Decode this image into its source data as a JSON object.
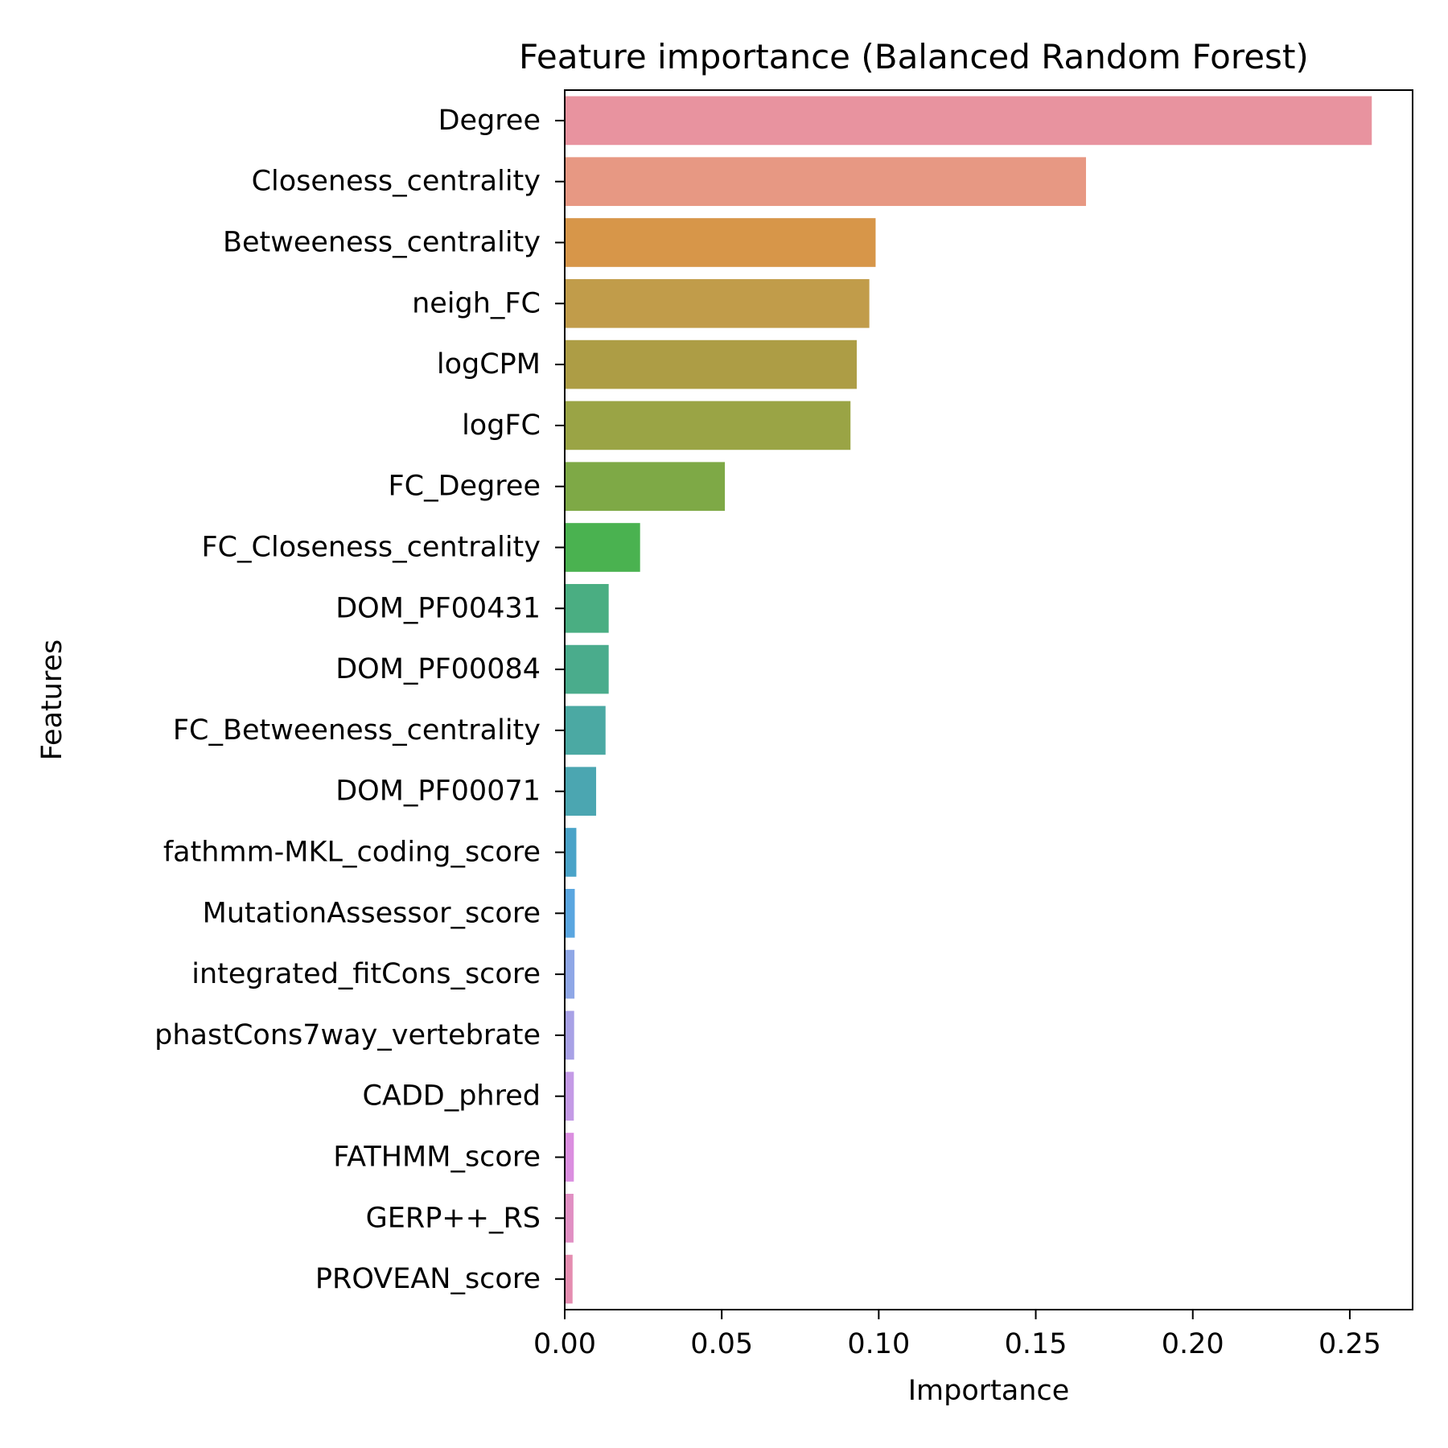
{
  "chart_data": {
    "type": "bar",
    "orientation": "horizontal",
    "title": "Feature importance (Balanced Random Forest)",
    "xlabel": "Importance",
    "ylabel": "Features",
    "xlim": [
      0,
      0.27
    ],
    "xticks": [
      0.0,
      0.05,
      0.1,
      0.15,
      0.2,
      0.25
    ],
    "xtick_labels": [
      "0.00",
      "0.05",
      "0.10",
      "0.15",
      "0.20",
      "0.25"
    ],
    "grid": false,
    "legend": false,
    "categories": [
      "Degree",
      "Closeness_centrality",
      "Betweeness_centrality",
      "neigh_FC",
      "logCPM",
      "logFC",
      "FC_Degree",
      "FC_Closeness_centrality",
      "DOM_PF00431",
      "DOM_PF00084",
      "FC_Betweeness_centrality",
      "DOM_PF00071",
      "fathmm-MKL_coding_score",
      "MutationAssessor_score",
      "integrated_fitCons_score",
      "phastCons7way_vertebrate",
      "CADD_phred",
      "FATHMM_score",
      "GERP++_RS",
      "PROVEAN_score"
    ],
    "values": [
      0.257,
      0.166,
      0.099,
      0.097,
      0.093,
      0.091,
      0.051,
      0.024,
      0.014,
      0.014,
      0.013,
      0.01,
      0.0037,
      0.0032,
      0.0031,
      0.003,
      0.0029,
      0.0029,
      0.0028,
      0.0025
    ],
    "colors": [
      "#e8939f",
      "#e79883",
      "#d79649",
      "#c19c4a",
      "#ad9d45",
      "#9aa445",
      "#7ea946",
      "#4ab250",
      "#4aae82",
      "#4aac8c",
      "#4ba9a3",
      "#4ba6b1",
      "#4aa3c8",
      "#5aa6e0",
      "#8fa7e6",
      "#a8a1e6",
      "#c49ae6",
      "#db8ee0",
      "#e18fc3",
      "#e58db0"
    ]
  }
}
